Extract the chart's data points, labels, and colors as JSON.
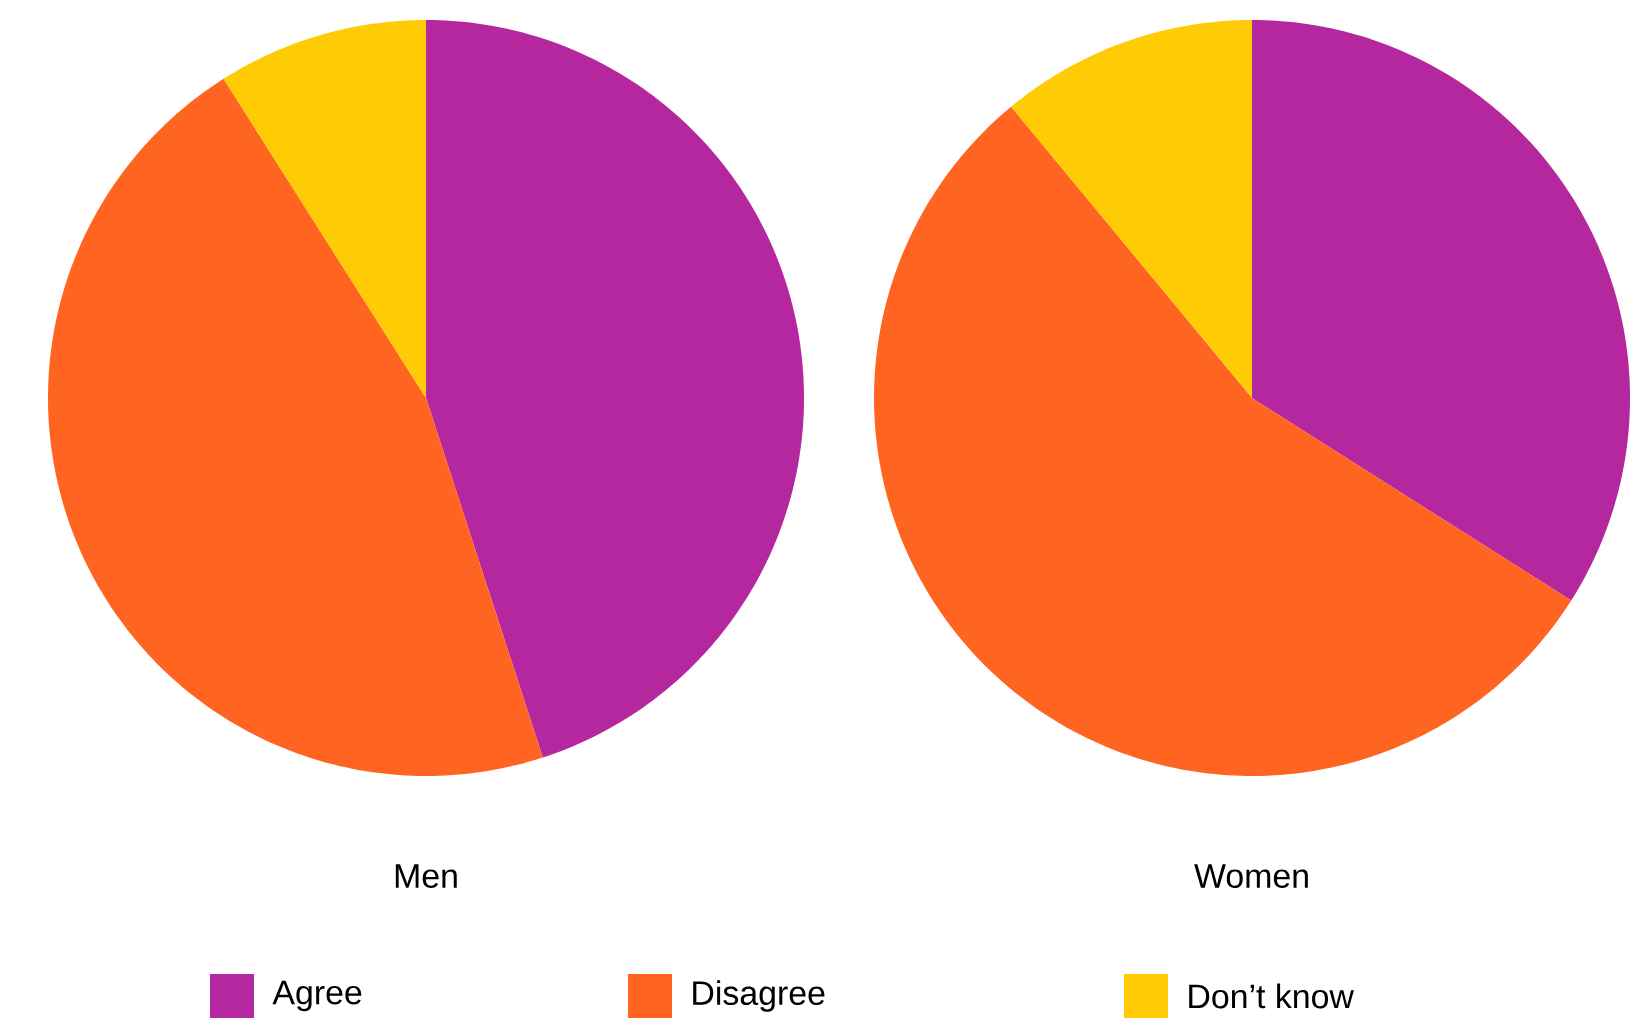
{
  "chart_data": [
    {
      "type": "pie",
      "title": "Men",
      "categories": [
        "Agree",
        "Disagree",
        "Don’t know"
      ],
      "values": [
        45,
        46,
        9
      ],
      "colors": [
        "#b5279f",
        "#ff6421",
        "#ffcb05"
      ],
      "legend": "bottom"
    },
    {
      "type": "pie",
      "title": "Women",
      "values": [
        34,
        55,
        11
      ],
      "colors": [
        "#b5279f",
        "#ff6421",
        "#ffcb05"
      ]
    }
  ]
}
